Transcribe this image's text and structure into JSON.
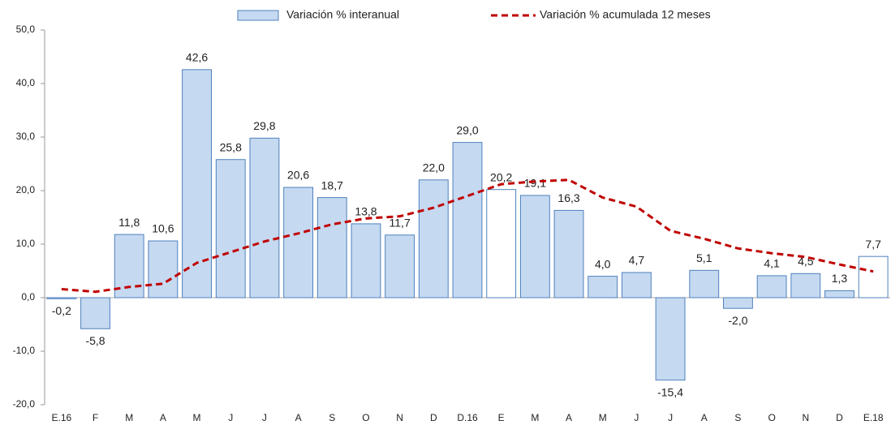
{
  "chart_data": {
    "type": "bar",
    "categories": [
      "E.16",
      "F",
      "M",
      "A",
      "M",
      "J",
      "J",
      "A",
      "S",
      "O",
      "N",
      "D",
      "D.16",
      "E",
      "M",
      "A",
      "M",
      "J",
      "J",
      "A",
      "S",
      "O",
      "N",
      "D",
      "E.18"
    ],
    "series": [
      {
        "name": "Variación % interanual",
        "type": "bar",
        "color": "#c5d9f1",
        "edge": "#4f81bd",
        "colors": [
          "#c5d9f1",
          "#c5d9f1",
          "#c5d9f1",
          "#c5d9f1",
          "#c5d9f1",
          "#c5d9f1",
          "#c5d9f1",
          "#c5d9f1",
          "#c5d9f1",
          "#c5d9f1",
          "#c5d9f1",
          "#c5d9f1",
          "#c5d9f1",
          "#ffffff",
          "#c5d9f1",
          "#c5d9f1",
          "#c5d9f1",
          "#c5d9f1",
          "#c5d9f1",
          "#c5d9f1",
          "#c5d9f1",
          "#c5d9f1",
          "#c5d9f1",
          "#c5d9f1",
          "#ffffff"
        ],
        "values": [
          -0.2,
          -5.8,
          11.8,
          10.6,
          42.6,
          25.8,
          29.8,
          20.6,
          18.7,
          13.8,
          11.7,
          22.0,
          29.0,
          20.2,
          19.1,
          16.3,
          4.0,
          4.7,
          -15.4,
          5.1,
          -2.0,
          4.1,
          4.5,
          1.3,
          7.7
        ],
        "value_labels": [
          "-0,2",
          "-5,8",
          "11,8",
          "10,6",
          "42,6",
          "25,8",
          "29,8",
          "20,6",
          "18,7",
          "13,8",
          "11,7",
          "22,0",
          "29,0",
          "20,2",
          "19,1",
          "16,3",
          "4,0",
          "4,7",
          "-15,4",
          "5,1",
          "-2,0",
          "4,1",
          "4,5",
          "1,3",
          "7,7"
        ]
      },
      {
        "name": "Variación % acumulada 12 meses",
        "type": "line",
        "color": "#c00000",
        "values": [
          1.6,
          1.1,
          2.0,
          2.6,
          6.5,
          8.5,
          10.5,
          12.0,
          13.7,
          14.8,
          15.2,
          16.8,
          19.0,
          21.2,
          21.7,
          22.0,
          18.7,
          17.0,
          12.5,
          11.0,
          9.2,
          8.3,
          7.6,
          6.2,
          4.9
        ]
      }
    ],
    "ylim": [
      -20,
      50
    ],
    "yticks": [
      {
        "value": -20,
        "label": "-20,0"
      },
      {
        "value": -10,
        "label": "-10,0"
      },
      {
        "value": 0,
        "label": "0,0"
      },
      {
        "value": 10,
        "label": "10,0"
      },
      {
        "value": 20,
        "label": "20,0"
      },
      {
        "value": 30,
        "label": "30,0"
      },
      {
        "value": 40,
        "label": "40,0"
      },
      {
        "value": 50,
        "label": "50,0"
      }
    ],
    "legend": "top"
  }
}
